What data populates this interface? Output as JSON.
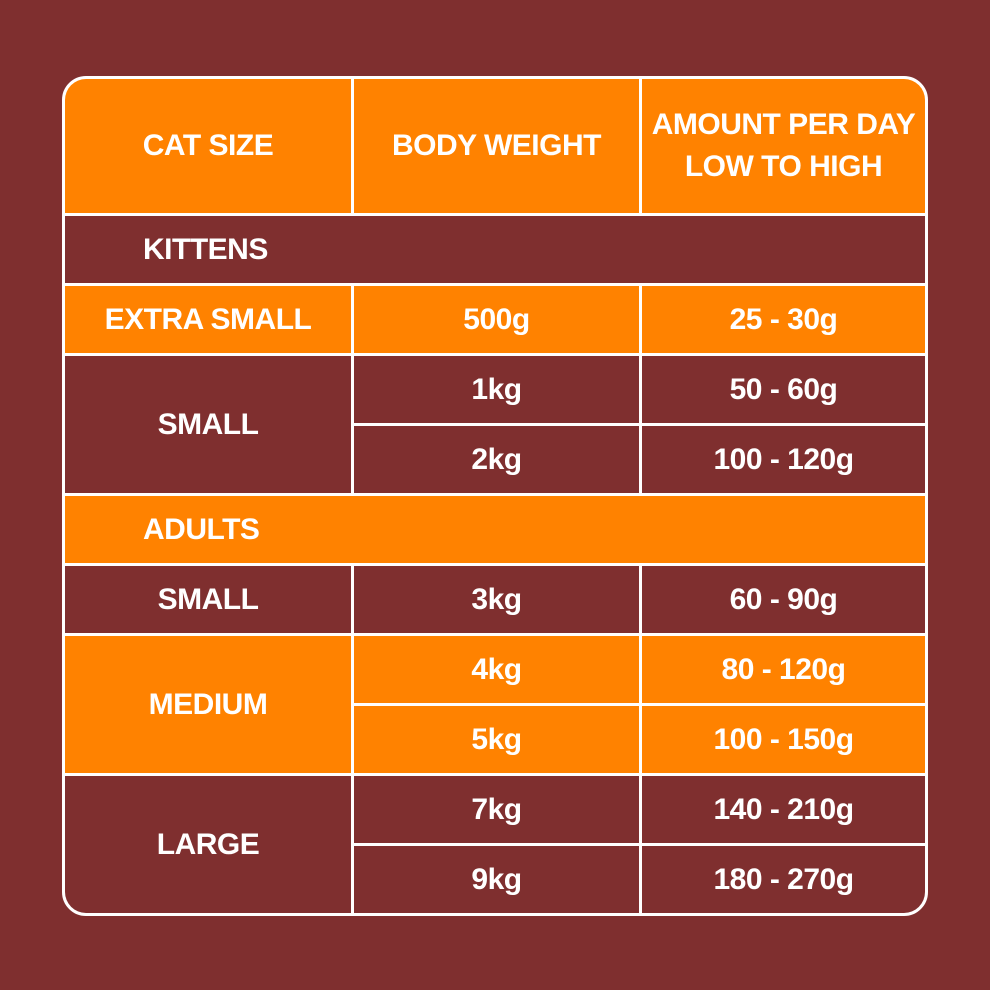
{
  "table": {
    "header": [
      [
        "CAT SIZE"
      ],
      [
        "BODY WEIGHT"
      ],
      [
        "AMOUNT PER DAY",
        "LOW TO HIGH"
      ]
    ],
    "sections": [
      {
        "label": "KITTENS",
        "groups": [
          {
            "size": "EXTRA SMALL",
            "rows": [
              [
                "500g",
                "25 - 30g"
              ]
            ]
          },
          {
            "size": "SMALL",
            "rows": [
              [
                "1kg",
                "50 - 60g"
              ],
              [
                "2kg",
                "100 - 120g"
              ]
            ]
          }
        ]
      },
      {
        "label": "ADULTS",
        "groups": [
          {
            "size": "SMALL",
            "rows": [
              [
                "3kg",
                "60 - 90g"
              ]
            ]
          },
          {
            "size": "MEDIUM",
            "rows": [
              [
                "4kg",
                "80 - 120g"
              ],
              [
                "5kg",
                "100 - 150g"
              ]
            ]
          },
          {
            "size": "LARGE",
            "rows": [
              [
                "7kg",
                "140 - 210g"
              ],
              [
                "9kg",
                "180 - 270g"
              ]
            ]
          }
        ]
      }
    ]
  }
}
